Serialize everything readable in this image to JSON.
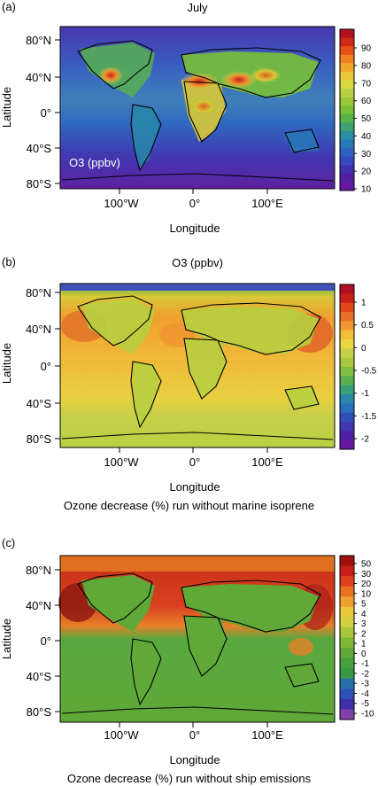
{
  "panels": [
    {
      "label": "(a)",
      "title": "July",
      "inner_label": "O3 (ppbv)",
      "caption": "",
      "colorbar": {
        "ticks": [
          "90",
          "80",
          "70",
          "60",
          "50",
          "40",
          "30",
          "20",
          "10"
        ],
        "colors": [
          "#b01020",
          "#d02818",
          "#e85018",
          "#f08020",
          "#f0a828",
          "#e8c838",
          "#d8d840",
          "#b8d040",
          "#98c838",
          "#78c038",
          "#58b048",
          "#40a070",
          "#2890a0",
          "#2878b8",
          "#3060c0",
          "#3848c0",
          "#4030b0",
          "#5020a0",
          "#6818a0"
        ]
      },
      "chart_data": {
        "type": "heatmap",
        "title": "July",
        "xlabel": "Longitude",
        "ylabel": "Latitude",
        "x_ticks": [
          "100°W",
          "0°",
          "100°E"
        ],
        "y_ticks": [
          "80°N",
          "40°N",
          "0°",
          "40°S",
          "80°S"
        ],
        "colorbar_range": [
          10,
          95
        ],
        "units": "O3 (ppbv)"
      }
    },
    {
      "label": "(b)",
      "title": "O3 (ppbv)",
      "inner_label": "",
      "caption": "Ozone decrease (%) run without marine isoprene",
      "colorbar": {
        "ticks": [
          "1",
          "0.5",
          "0",
          "-0.5",
          "-1",
          "-1.5",
          "-2"
        ],
        "colors": [
          "#b01020",
          "#c82018",
          "#e04818",
          "#e87028",
          "#f09830",
          "#f0c038",
          "#e8d840",
          "#c8d048",
          "#a8c840",
          "#80c040",
          "#58b050",
          "#38a078",
          "#2888a8",
          "#2870b8",
          "#3050b8",
          "#4038b0",
          "#5020a8",
          "#6818a0"
        ]
      },
      "chart_data": {
        "type": "heatmap",
        "title": "",
        "xlabel": "Longitude",
        "ylabel": "Latitude",
        "x_ticks": [
          "100°W",
          "0°",
          "100°E"
        ],
        "y_ticks": [
          "80°N",
          "40°N",
          "0°",
          "40°S",
          "80°S"
        ],
        "colorbar_range": [
          -2.3,
          1.3
        ],
        "units": "Ozone decrease (%)"
      }
    },
    {
      "label": "(c)",
      "title": "",
      "inner_label": "",
      "caption": "Ozone decrease (%) run without ship emissions",
      "colorbar": {
        "ticks": [
          "50",
          "30",
          "20",
          "10",
          "5",
          "4",
          "3",
          "2",
          "1",
          "0",
          "-1",
          "-2",
          "-3",
          "-4",
          "-5",
          "-10"
        ],
        "colors": [
          "#a01010",
          "#c82018",
          "#e04020",
          "#e87020",
          "#f0a030",
          "#e8c838",
          "#d0d040",
          "#a8c838",
          "#80b838",
          "#60a838",
          "#48a040",
          "#389848",
          "#2870a8",
          "#3050b8",
          "#4030a8",
          "#8040a8"
        ]
      },
      "chart_data": {
        "type": "heatmap",
        "title": "",
        "xlabel": "Longitude",
        "ylabel": "Latitude",
        "x_ticks": [
          "100°W",
          "0°",
          "100°E"
        ],
        "y_ticks": [
          "80°N",
          "40°N",
          "0°",
          "40°S",
          "80°S"
        ],
        "colorbar_ticks": [
          "50",
          "30",
          "20",
          "10",
          "5",
          "4",
          "3",
          "2",
          "1",
          "0",
          "-1",
          "-2",
          "-3",
          "-4",
          "-5",
          "-10"
        ],
        "units": "Ozone decrease (%)"
      }
    }
  ]
}
